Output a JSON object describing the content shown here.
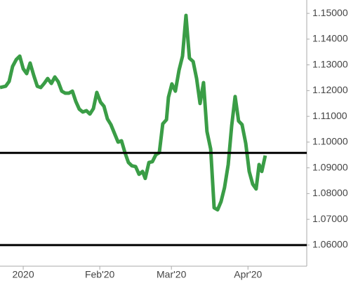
{
  "chart_data": {
    "type": "line",
    "x": [
      -9.4,
      -7.1,
      -5.7,
      -4.3,
      -2.8,
      -1.4,
      0,
      1.4,
      2.8,
      4.3,
      5.7,
      7.1,
      8.5,
      9.9,
      11.4,
      12.8,
      14.2,
      15.6,
      17.0,
      18.5,
      19.9,
      21.3,
      22.7,
      24.1,
      25.6,
      27.0,
      28.4,
      29.8,
      31.3,
      32.7,
      34.1,
      35.5,
      36.9,
      38.4,
      39.8,
      41.2,
      42.6,
      44.0,
      45.5,
      46.9,
      48.3,
      49.4,
      50.9,
      52.3,
      53.7,
      55.1,
      56.5,
      58.0,
      58.8,
      60.2,
      61.6,
      63.1,
      64.5,
      65.9,
      67.3,
      68.8,
      70.2,
      71.6,
      73.0,
      74.4,
      75.9,
      77.3,
      78.7,
      80.1,
      81.5,
      83.0,
      84.4,
      85.8,
      87.2,
      88.6,
      90.1,
      91.5,
      92.9,
      94.3,
      95.5,
      96.6,
      98.0
    ],
    "series": [
      {
        "color": "#3a9d46",
        "values": [
          1.1212,
          1.1217,
          1.1236,
          1.1294,
          1.1321,
          1.1334,
          1.1285,
          1.1266,
          1.1307,
          1.1258,
          1.1217,
          1.1212,
          1.1228,
          1.1247,
          1.1228,
          1.1253,
          1.1234,
          1.1198,
          1.119,
          1.119,
          1.1198,
          1.1158,
          1.1128,
          1.1117,
          1.1122,
          1.1109,
          1.113,
          1.1193,
          1.1155,
          1.1139,
          1.109,
          1.1068,
          1.1035,
          1.1,
          1.1005,
          1.0959,
          1.0921,
          1.0908,
          1.0905,
          1.0875,
          1.0886,
          1.0859,
          1.0921,
          1.0924,
          1.0951,
          1.0959,
          1.1071,
          1.1087,
          1.1174,
          1.1226,
          1.1198,
          1.128,
          1.1334,
          1.1492,
          1.1326,
          1.1313,
          1.1247,
          1.115,
          1.1231,
          1.1041,
          1.0973,
          1.0745,
          1.0737,
          1.0769,
          1.0823,
          1.0913,
          1.1063,
          1.1177,
          1.1082,
          1.1068,
          1.0995,
          1.0886,
          1.0837,
          1.0818,
          1.0913,
          1.0886,
          1.0948
        ]
      }
    ],
    "hlines": [
      1.0958,
      1.06
    ],
    "hline_color": "#000000",
    "xlim": [
      -9.4,
      114.8
    ],
    "xticks": [
      {
        "value": 0,
        "label": "2020"
      },
      {
        "value": 31,
        "label": "Feb'20"
      },
      {
        "value": 60,
        "label": "Mar'20"
      },
      {
        "value": 91,
        "label": "Apr'20"
      }
    ],
    "ylim": [
      1.0518,
      1.1552
    ],
    "yticks": [
      {
        "value": 1.06,
        "label": "1.06000"
      },
      {
        "value": 1.07,
        "label": "1.07000"
      },
      {
        "value": 1.08,
        "label": "1.08000"
      },
      {
        "value": 1.09,
        "label": "1.09000"
      },
      {
        "value": 1.1,
        "label": "1.10000"
      },
      {
        "value": 1.11,
        "label": "1.11000"
      },
      {
        "value": 1.12,
        "label": "1.12000"
      },
      {
        "value": 1.13,
        "label": "1.13000"
      },
      {
        "value": 1.14,
        "label": "1.14000"
      },
      {
        "value": 1.15,
        "label": "1.15000"
      }
    ]
  }
}
